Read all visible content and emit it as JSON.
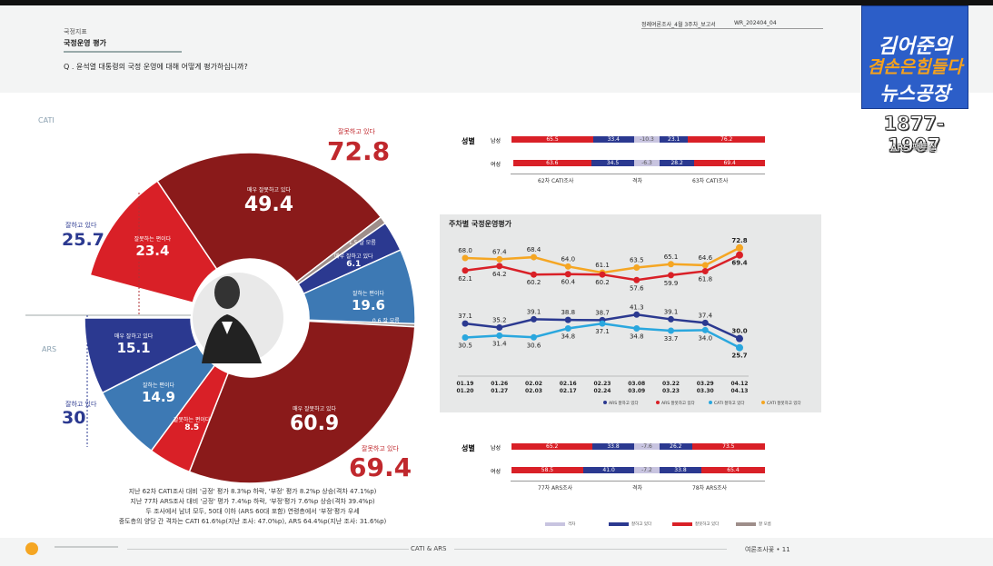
{
  "header": {
    "category": "국정지표",
    "section": "국정운영 평가",
    "question": "Q . 윤석열 대통령의 국정 운영에 대해 어떻게 평가하십니까?",
    "report": "정례여론조사_4월 3주차_보고서",
    "code": "WR_202404_04"
  },
  "logo": {
    "line1": "김어준의",
    "line2": "겸손은힘들다",
    "line3": "뉴스공장",
    "years": "1877-1907",
    "sub": "ARS 팩트실"
  },
  "colors": {
    "dark_red": "#8a1a1a",
    "red": "#d92027",
    "dark_blue": "#2b3990",
    "steel_blue": "#3d79b4",
    "cyan": "#2aa7de",
    "orange": "#f5a623",
    "gray": "#9e8e8a",
    "lavender": "#c8c4e0"
  },
  "chart_data": [
    {
      "type": "pie",
      "labels": {
        "cati": "CATI",
        "ars": "ARS",
        "dontknow": "잘 모름"
      },
      "cati": {
        "positive": {
          "label": "잘하고 있다",
          "value": 25.7
        },
        "negative": {
          "label": "잘못하고 있다",
          "value": 72.8
        },
        "slices": [
          {
            "label": "잘못하는 편이다",
            "value": 23.4
          },
          {
            "label": "매우 잘못하고 있다",
            "value": 49.4
          },
          {
            "label": "잘 모름",
            "value": 1.5
          },
          {
            "label": "매우 잘하고 있다",
            "value": 6.1
          },
          {
            "label": "잘하는 편이다",
            "value": 19.6
          }
        ]
      },
      "ars": {
        "positive": {
          "label": "잘하고 있다",
          "value": 30.0
        },
        "negative": {
          "label": "잘못하고 있다",
          "value": 69.4
        },
        "slices": [
          {
            "label": "잘 모름",
            "value": 0.6
          },
          {
            "label": "매우 잘못하고 있다",
            "value": 60.9
          },
          {
            "label": "잘못하는 편이다",
            "value": 8.5
          },
          {
            "label": "잘하는 편이다",
            "value": 14.9
          },
          {
            "label": "매우 잘하고 있다",
            "value": 15.1
          }
        ]
      }
    },
    {
      "type": "bar",
      "group_label": "성별",
      "survey_left": "62차 CATI조사",
      "survey_right": "63차 CATI조사",
      "gap_label": "격차",
      "rows": [
        {
          "name": "남성",
          "neg_left": "65.5",
          "pos_left": "33.4",
          "gap": "-10.3",
          "pos_right": "23.1",
          "neg_right": "76.2",
          "pos_l": 33.4,
          "neg_l": 65.5,
          "pos_r": 23.1,
          "neg_r": 76.2
        },
        {
          "name": "여성",
          "neg_left": "63.6",
          "pos_left": "34.5",
          "gap": "-6.3",
          "pos_right": "28.2",
          "neg_right": "69.4",
          "pos_l": 34.5,
          "neg_l": 63.6,
          "pos_r": 28.2,
          "neg_r": 69.4
        }
      ]
    },
    {
      "type": "line",
      "title": "주차별 국정운영평가",
      "x": [
        "01.19\n01.20",
        "01.26\n01.27",
        "02.02\n02.03",
        "02.16\n02.17",
        "02.23\n02.24",
        "03.08\n03.09",
        "03.22\n03.23",
        "03.29\n03.30",
        "04.12\n04.13"
      ],
      "ylim": [
        20,
        80
      ],
      "series": [
        {
          "name": "CATI 잘못하고 있다",
          "color": "#f5a623",
          "values": [
            68.0,
            67.4,
            68.4,
            64.0,
            61.1,
            63.5,
            65.1,
            64.6,
            72.8
          ]
        },
        {
          "name": "ARS 잘못하고 있다",
          "color": "#d92027",
          "values": [
            62.1,
            64.2,
            60.2,
            60.4,
            60.2,
            57.6,
            59.9,
            61.8,
            69.4
          ]
        },
        {
          "name": "ARS 잘하고 있다",
          "color": "#2b3990",
          "values": [
            37.1,
            35.2,
            39.1,
            38.8,
            38.7,
            41.3,
            39.1,
            37.4,
            30.0
          ]
        },
        {
          "name": "CATI 잘하고 있다",
          "color": "#2aa7de",
          "values": [
            30.5,
            31.4,
            30.6,
            34.8,
            37.1,
            34.8,
            33.7,
            34.0,
            25.7
          ]
        }
      ],
      "legend": [
        "ARS 잘하고 있다",
        "ARS 잘못하고 있다",
        "CATI 잘하고 있다",
        "CATI 잘못하고 있다"
      ]
    },
    {
      "type": "bar",
      "group_label": "성별",
      "survey_left": "77차 ARS조사",
      "survey_right": "78차 ARS조사",
      "gap_label": "격차",
      "rows": [
        {
          "name": "남성",
          "neg_left": "65.2",
          "pos_left": "33.8",
          "gap": "-7.6",
          "pos_right": "26.2",
          "neg_right": "73.5",
          "pos_l": 33.8,
          "neg_l": 65.2,
          "pos_r": 26.2,
          "neg_r": 73.5
        },
        {
          "name": "여성",
          "neg_left": "58.5",
          "pos_left": "41.0",
          "gap": "-7.2",
          "pos_right": "33.8",
          "neg_right": "65.4",
          "pos_l": 41.0,
          "neg_l": 58.5,
          "pos_r": 33.8,
          "neg_r": 65.4
        }
      ],
      "legend": [
        "격차",
        "잘하고 있다",
        "잘못하고 있다",
        "잘 모름"
      ]
    }
  ],
  "notes": [
    "지난 62차 CATI조사 대비 '긍정' 평가 8.3%p 하락, '부정' 평가 8.2%p 상승(격차 47.1%p)",
    "지난 77차  ARS조사 대비 '긍정' 평가 7.4%p 하락, '부정'평가 7.6%p 상승(격차 39.4%p)",
    "두 조사에서 남녀 모두, 50대 이하 (ARS 60대 포함) 연령층에서 '부정'평가 우세",
    "중도층의 양당 간 격차는 CATI 61.6%p(지난 조사: 47.0%p), ARS 64.4%p(지난 조사: 31.6%p)"
  ],
  "footer": {
    "center": "CATI & ARS",
    "right": "여론조사꽃 • 11"
  }
}
